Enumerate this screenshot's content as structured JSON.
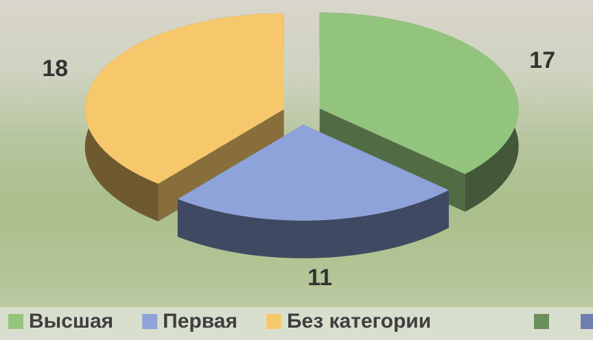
{
  "chart_data": {
    "type": "pie",
    "categories": [
      "Высшая",
      "Первая",
      "Без категории"
    ],
    "values": [
      17,
      11,
      18
    ],
    "colors": [
      "#93c47d",
      "#8ea3d9",
      "#f6c86b"
    ],
    "legend": "bottom"
  }
}
